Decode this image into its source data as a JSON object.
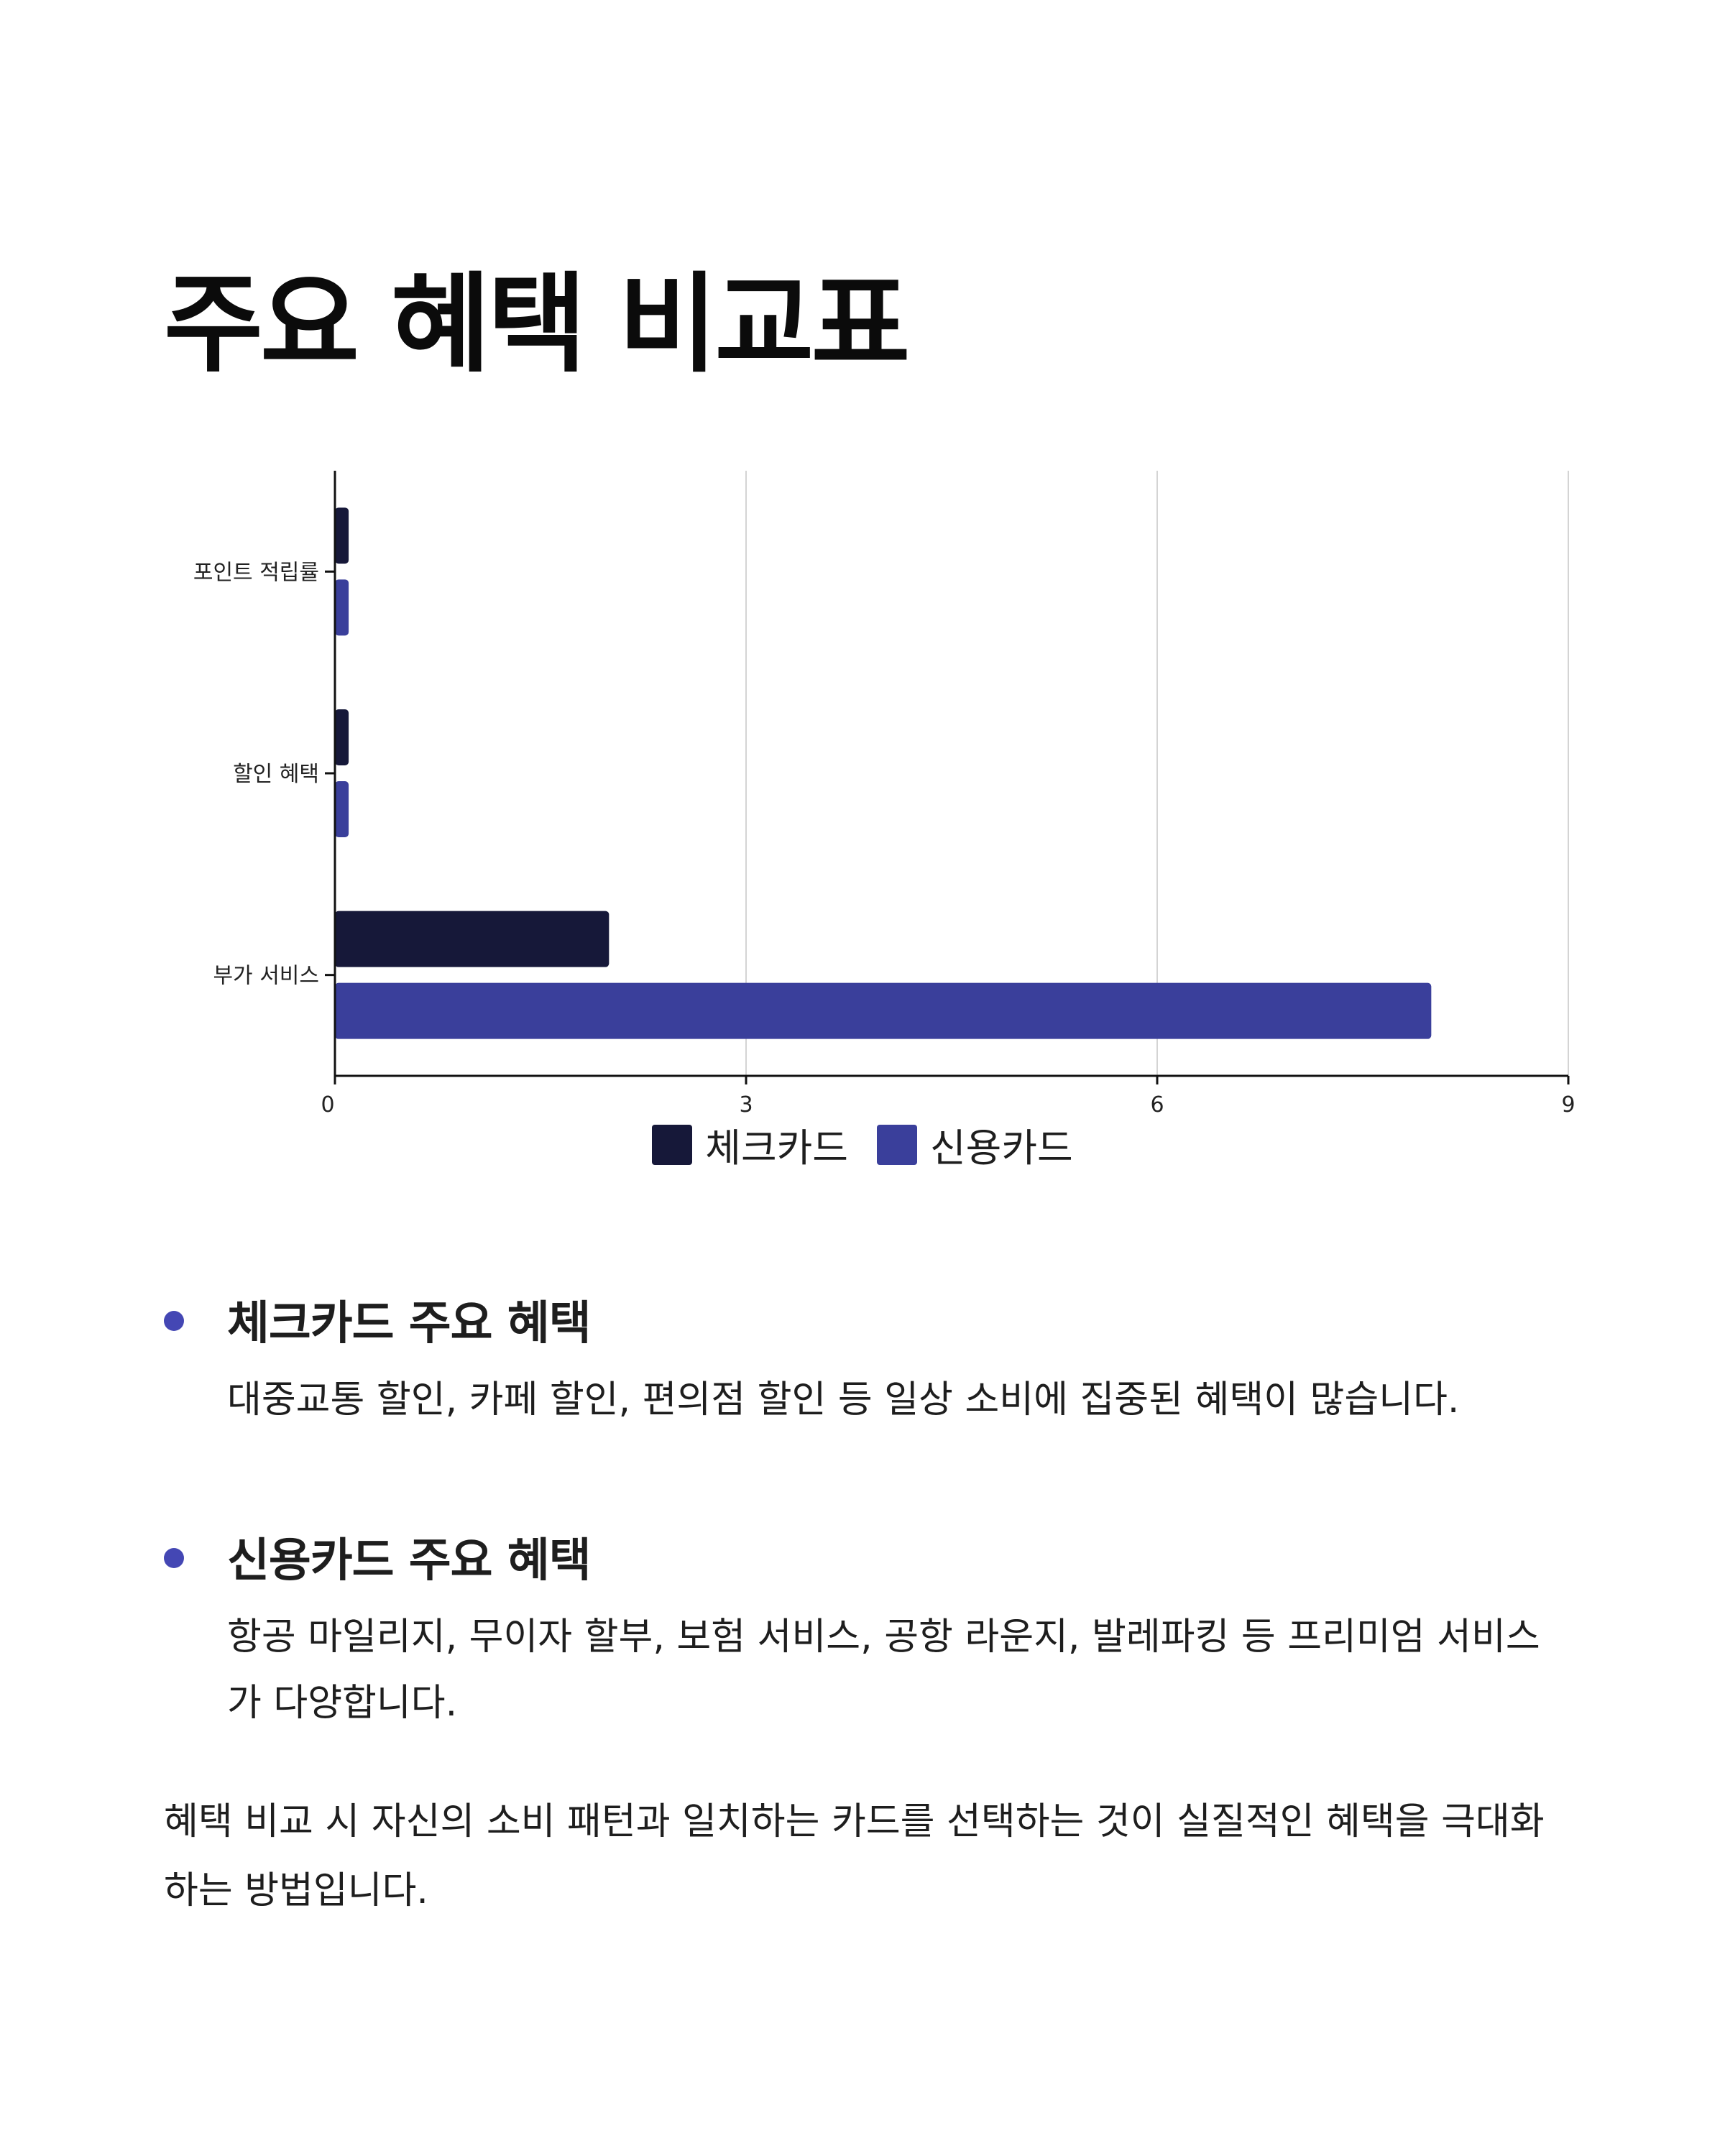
{
  "title": "주요 혜택 비교표",
  "chart_data": {
    "type": "bar",
    "orientation": "horizontal",
    "categories": [
      "포인트 적립률",
      "할인 혜택",
      "부가 서비스"
    ],
    "series": [
      {
        "name": "체크카드",
        "color": "#161839",
        "values": [
          0.1,
          0.1,
          2
        ]
      },
      {
        "name": "신용카드",
        "color": "#3a3f9b",
        "values": [
          0.1,
          0.1,
          8
        ]
      }
    ],
    "xlim": [
      0,
      9
    ],
    "xticks": [
      0,
      3,
      6,
      9
    ],
    "grid": true,
    "legend_position": "bottom"
  },
  "sections": [
    {
      "heading": "체크카드 주요 혜택",
      "text": "대중교통 할인, 카페 할인, 편의점 할인 등 일상 소비에 집중된 혜택이 많습니다.",
      "bullet_color": "#4447b4"
    },
    {
      "heading": "신용카드 주요 혜택",
      "text": "항공 마일리지, 무이자 할부, 보험 서비스, 공항 라운지, 발레파킹 등 프리미엄 서비스가 다양합니다.",
      "bullet_color": "#4447b4"
    }
  ],
  "closing": "혜택 비교 시 자신의 소비 패턴과 일치하는 카드를 선택하는 것이 실질적인 혜택을 극대화하는 방법입니다."
}
